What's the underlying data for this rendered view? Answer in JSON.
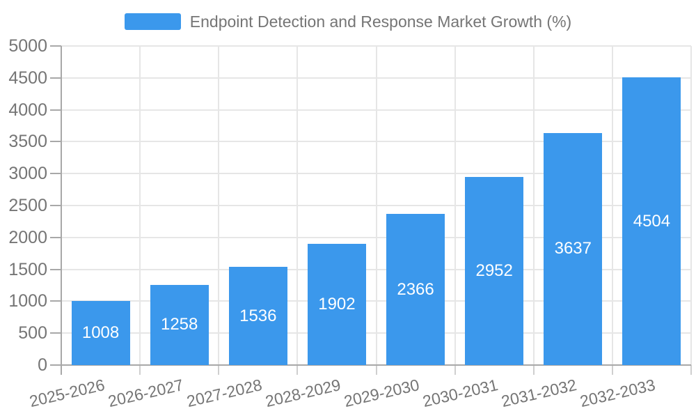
{
  "legend": {
    "swatch_color": "#3b98ec",
    "label": "Endpoint Detection and Response Market Growth (%)"
  },
  "colors": {
    "bar": "#3b98ec",
    "bar_value_text": "#ffffff",
    "axis_text": "#757575",
    "axis_line": "#a8a8a8",
    "gridline": "#e6e6e6"
  },
  "chart_data": {
    "type": "bar",
    "title": "Endpoint Detection and Response Market Growth (%)",
    "categories": [
      "2025-2026",
      "2026-2027",
      "2027-2028",
      "2028-2029",
      "2029-2030",
      "2030-2031",
      "2031-2032",
      "2032-2033"
    ],
    "values": [
      1008,
      1258,
      1536,
      1902,
      2366,
      2952,
      3637,
      4504
    ],
    "xlabel": "",
    "ylabel": "",
    "ylim": [
      0,
      5000
    ],
    "yticks": [
      0,
      500,
      1000,
      1500,
      2000,
      2500,
      3000,
      3500,
      4000,
      4500,
      5000
    ],
    "grid": true,
    "value_labels": "inside-center",
    "legend_position": "top-center",
    "x_label_rotation_deg": -13
  }
}
